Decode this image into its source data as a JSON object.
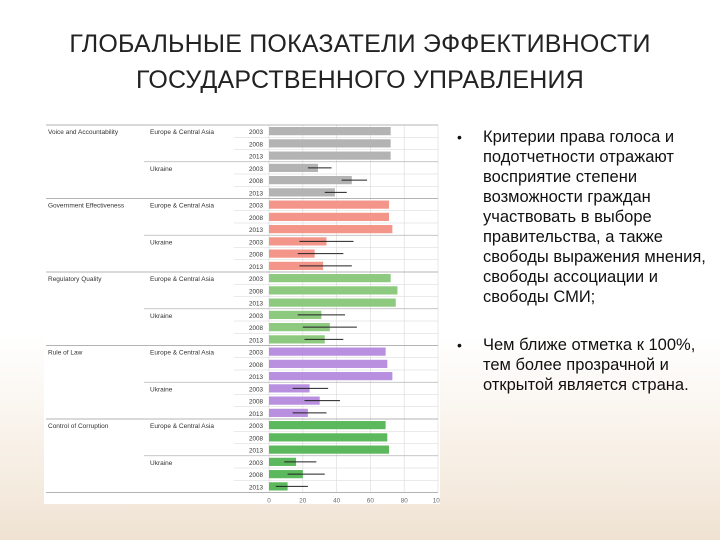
{
  "title": {
    "line1": "ГЛОБАЛЬНЫЕ ПОКАЗАТЕЛИ ЭФФЕКТИВНОСТИ",
    "line2": "ГОСУДАРСТВЕННОГО УПРАВЛЕНИЯ"
  },
  "bullets": [
    {
      "icon": "bullet-dot",
      "text": "Критерии права голоса и подотчетности отражают восприятие степени возможности граждан участвовать в выборе правительства, а также свободы выражения мнения, свободы ассоциации и свободы СМИ;"
    },
    {
      "icon": "bullet-dot",
      "text": "Чем ближе отметка к 100%, тем более прозрачной и открытой является страна."
    }
  ],
  "chart_data": {
    "type": "bar",
    "orientation": "horizontal",
    "xlim": [
      0,
      100
    ],
    "xticks": [
      "0",
      "20",
      "40",
      "60",
      "80",
      "100"
    ],
    "grid": true,
    "groups": [
      {
        "indicator": "Voice and Accountability",
        "color": "#b3b3b3",
        "rows": [
          {
            "region": "Europe & Central Asia",
            "year": "2003",
            "value": 72,
            "error": null
          },
          {
            "region": "",
            "year": "2008",
            "value": 72,
            "error": null
          },
          {
            "region": "",
            "year": "2013",
            "value": 72,
            "error": null
          },
          {
            "region": "Ukraine",
            "year": "2003",
            "value": 29,
            "error": [
              23,
              37
            ]
          },
          {
            "region": "",
            "year": "2008",
            "value": 49,
            "error": [
              43,
              58
            ]
          },
          {
            "region": "",
            "year": "2013",
            "value": 39,
            "error": [
              33,
              46
            ]
          }
        ]
      },
      {
        "indicator": "Government Effectiveness",
        "color": "#f4958a",
        "rows": [
          {
            "region": "Europe & Central Asia",
            "year": "2003",
            "value": 71,
            "error": null
          },
          {
            "region": "",
            "year": "2008",
            "value": 71,
            "error": null
          },
          {
            "region": "",
            "year": "2013",
            "value": 73,
            "error": null
          },
          {
            "region": "Ukraine",
            "year": "2003",
            "value": 34,
            "error": [
              18,
              50
            ]
          },
          {
            "region": "",
            "year": "2008",
            "value": 27,
            "error": [
              17,
              44
            ]
          },
          {
            "region": "",
            "year": "2013",
            "value": 32,
            "error": [
              18,
              49
            ]
          }
        ]
      },
      {
        "indicator": "Regulatory Quality",
        "color": "#8dc97e",
        "rows": [
          {
            "region": "Europe & Central Asia",
            "year": "2003",
            "value": 72,
            "error": null
          },
          {
            "region": "",
            "year": "2008",
            "value": 76,
            "error": null
          },
          {
            "region": "",
            "year": "2013",
            "value": 75,
            "error": null
          },
          {
            "region": "Ukraine",
            "year": "2003",
            "value": 31,
            "error": [
              17,
              45
            ]
          },
          {
            "region": "",
            "year": "2008",
            "value": 36,
            "error": [
              20,
              52
            ]
          },
          {
            "region": "",
            "year": "2013",
            "value": 33,
            "error": [
              21,
              44
            ]
          }
        ]
      },
      {
        "indicator": "Rule of Law",
        "color": "#b98fe0",
        "rows": [
          {
            "region": "Europe & Central Asia",
            "year": "2003",
            "value": 69,
            "error": null
          },
          {
            "region": "",
            "year": "2008",
            "value": 70,
            "error": null
          },
          {
            "region": "",
            "year": "2013",
            "value": 73,
            "error": null
          },
          {
            "region": "Ukraine",
            "year": "2003",
            "value": 24,
            "error": [
              14,
              35
            ]
          },
          {
            "region": "",
            "year": "2008",
            "value": 30,
            "error": [
              21,
              42
            ]
          },
          {
            "region": "",
            "year": "2013",
            "value": 23,
            "error": [
              14,
              34
            ]
          }
        ]
      },
      {
        "indicator": "Control of Corruption",
        "color": "#5cb85c",
        "rows": [
          {
            "region": "Europe & Central Asia",
            "year": "2003",
            "value": 69,
            "error": null
          },
          {
            "region": "",
            "year": "2008",
            "value": 70,
            "error": null
          },
          {
            "region": "",
            "year": "2013",
            "value": 71,
            "error": null
          },
          {
            "region": "Ukraine",
            "year": "2003",
            "value": 16,
            "error": [
              9,
              28
            ]
          },
          {
            "region": "",
            "year": "2008",
            "value": 20,
            "error": [
              11,
              33
            ]
          },
          {
            "region": "",
            "year": "2013",
            "value": 11,
            "error": [
              4,
              23
            ]
          }
        ]
      }
    ]
  }
}
